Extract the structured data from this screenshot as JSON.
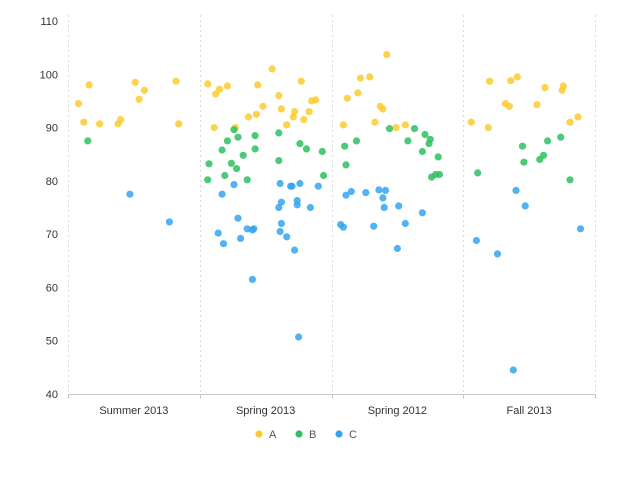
{
  "chart_data": {
    "type": "scatter",
    "title": "",
    "xlabel": "",
    "ylabel": "",
    "categories": [
      "Summer 2013",
      "Spring 2013",
      "Spring 2012",
      "Fall 2013"
    ],
    "ylim": [
      40,
      110
    ],
    "yticks": [
      40,
      50,
      60,
      70,
      80,
      90,
      100,
      110
    ],
    "grid": "vertical dashed separators between categories",
    "legend_position": "bottom-center",
    "series": [
      {
        "name": "A",
        "color": "#FACB2E",
        "points": [
          {
            "category": "Summer 2013",
            "pos": 0.08,
            "y": 94.5
          },
          {
            "category": "Summer 2013",
            "pos": 0.12,
            "y": 91.0
          },
          {
            "category": "Summer 2013",
            "pos": 0.16,
            "y": 98.0
          },
          {
            "category": "Summer 2013",
            "pos": 0.24,
            "y": 90.7
          },
          {
            "category": "Summer 2013",
            "pos": 0.38,
            "y": 90.7
          },
          {
            "category": "Summer 2013",
            "pos": 0.4,
            "y": 91.5
          },
          {
            "category": "Summer 2013",
            "pos": 0.51,
            "y": 98.5
          },
          {
            "category": "Summer 2013",
            "pos": 0.54,
            "y": 95.3
          },
          {
            "category": "Summer 2013",
            "pos": 0.58,
            "y": 97.0
          },
          {
            "category": "Summer 2013",
            "pos": 0.82,
            "y": 98.7
          },
          {
            "category": "Summer 2013",
            "pos": 0.84,
            "y": 90.7
          },
          {
            "category": "Spring 2013",
            "pos": 0.06,
            "y": 98.2
          },
          {
            "category": "Spring 2013",
            "pos": 0.11,
            "y": 90.0
          },
          {
            "category": "Spring 2013",
            "pos": 0.12,
            "y": 96.3
          },
          {
            "category": "Spring 2013",
            "pos": 0.15,
            "y": 97.2
          },
          {
            "category": "Spring 2013",
            "pos": 0.21,
            "y": 97.8
          },
          {
            "category": "Spring 2013",
            "pos": 0.27,
            "y": 90.0
          },
          {
            "category": "Spring 2013",
            "pos": 0.37,
            "y": 92.0
          },
          {
            "category": "Spring 2013",
            "pos": 0.43,
            "y": 92.5
          },
          {
            "category": "Spring 2013",
            "pos": 0.44,
            "y": 98.0
          },
          {
            "category": "Spring 2013",
            "pos": 0.48,
            "y": 94.0
          },
          {
            "category": "Spring 2013",
            "pos": 0.55,
            "y": 101.0
          },
          {
            "category": "Spring 2013",
            "pos": 0.6,
            "y": 96.0
          },
          {
            "category": "Spring 2013",
            "pos": 0.62,
            "y": 93.5
          },
          {
            "category": "Spring 2013",
            "pos": 0.66,
            "y": 90.5
          },
          {
            "category": "Spring 2013",
            "pos": 0.71,
            "y": 92.0
          },
          {
            "category": "Spring 2013",
            "pos": 0.72,
            "y": 93.0
          },
          {
            "category": "Spring 2013",
            "pos": 0.77,
            "y": 98.7
          },
          {
            "category": "Spring 2013",
            "pos": 0.79,
            "y": 91.5
          },
          {
            "category": "Spring 2013",
            "pos": 0.83,
            "y": 93.0
          },
          {
            "category": "Spring 2013",
            "pos": 0.85,
            "y": 95.0
          },
          {
            "category": "Spring 2013",
            "pos": 0.88,
            "y": 95.2
          },
          {
            "category": "Spring 2012",
            "pos": 0.09,
            "y": 90.5
          },
          {
            "category": "Spring 2012",
            "pos": 0.12,
            "y": 95.5
          },
          {
            "category": "Spring 2012",
            "pos": 0.2,
            "y": 96.5
          },
          {
            "category": "Spring 2012",
            "pos": 0.22,
            "y": 99.3
          },
          {
            "category": "Spring 2012",
            "pos": 0.29,
            "y": 99.5
          },
          {
            "category": "Spring 2012",
            "pos": 0.33,
            "y": 91.0
          },
          {
            "category": "Spring 2012",
            "pos": 0.37,
            "y": 94.0
          },
          {
            "category": "Spring 2012",
            "pos": 0.39,
            "y": 93.5
          },
          {
            "category": "Spring 2012",
            "pos": 0.42,
            "y": 103.7
          },
          {
            "category": "Spring 2012",
            "pos": 0.49,
            "y": 90.0
          },
          {
            "category": "Spring 2012",
            "pos": 0.56,
            "y": 90.5
          },
          {
            "category": "Fall 2013",
            "pos": 0.06,
            "y": 91.0
          },
          {
            "category": "Fall 2013",
            "pos": 0.19,
            "y": 90.0
          },
          {
            "category": "Fall 2013",
            "pos": 0.2,
            "y": 98.7
          },
          {
            "category": "Fall 2013",
            "pos": 0.32,
            "y": 94.5
          },
          {
            "category": "Fall 2013",
            "pos": 0.35,
            "y": 94.0
          },
          {
            "category": "Fall 2013",
            "pos": 0.36,
            "y": 98.8
          },
          {
            "category": "Fall 2013",
            "pos": 0.41,
            "y": 99.5
          },
          {
            "category": "Fall 2013",
            "pos": 0.56,
            "y": 94.3
          },
          {
            "category": "Fall 2013",
            "pos": 0.62,
            "y": 97.5
          },
          {
            "category": "Fall 2013",
            "pos": 0.75,
            "y": 97.0
          },
          {
            "category": "Fall 2013",
            "pos": 0.76,
            "y": 97.8
          },
          {
            "category": "Fall 2013",
            "pos": 0.81,
            "y": 91.0
          },
          {
            "category": "Fall 2013",
            "pos": 0.87,
            "y": 92.0
          }
        ]
      },
      {
        "name": "B",
        "color": "#2EC162",
        "points": [
          {
            "category": "Summer 2013",
            "pos": 0.15,
            "y": 87.5
          },
          {
            "category": "Spring 2013",
            "pos": 0.06,
            "y": 80.2
          },
          {
            "category": "Spring 2013",
            "pos": 0.07,
            "y": 83.2
          },
          {
            "category": "Spring 2013",
            "pos": 0.17,
            "y": 85.8
          },
          {
            "category": "Spring 2013",
            "pos": 0.19,
            "y": 81.0
          },
          {
            "category": "Spring 2013",
            "pos": 0.21,
            "y": 87.5
          },
          {
            "category": "Spring 2013",
            "pos": 0.24,
            "y": 83.3
          },
          {
            "category": "Spring 2013",
            "pos": 0.26,
            "y": 89.6
          },
          {
            "category": "Spring 2013",
            "pos": 0.28,
            "y": 82.3
          },
          {
            "category": "Spring 2013",
            "pos": 0.29,
            "y": 88.2
          },
          {
            "category": "Spring 2013",
            "pos": 0.33,
            "y": 84.8
          },
          {
            "category": "Spring 2013",
            "pos": 0.36,
            "y": 80.2
          },
          {
            "category": "Spring 2013",
            "pos": 0.42,
            "y": 86.0
          },
          {
            "category": "Spring 2013",
            "pos": 0.42,
            "y": 88.5
          },
          {
            "category": "Spring 2013",
            "pos": 0.6,
            "y": 89.0
          },
          {
            "category": "Spring 2013",
            "pos": 0.6,
            "y": 83.8
          },
          {
            "category": "Spring 2013",
            "pos": 0.76,
            "y": 87.0
          },
          {
            "category": "Spring 2013",
            "pos": 0.81,
            "y": 86.0
          },
          {
            "category": "Spring 2013",
            "pos": 0.93,
            "y": 85.5
          },
          {
            "category": "Spring 2013",
            "pos": 0.94,
            "y": 81.0
          },
          {
            "category": "Spring 2012",
            "pos": 0.1,
            "y": 86.5
          },
          {
            "category": "Spring 2012",
            "pos": 0.11,
            "y": 83.0
          },
          {
            "category": "Spring 2012",
            "pos": 0.19,
            "y": 87.5
          },
          {
            "category": "Spring 2012",
            "pos": 0.44,
            "y": 89.8
          },
          {
            "category": "Spring 2012",
            "pos": 0.58,
            "y": 87.5
          },
          {
            "category": "Spring 2012",
            "pos": 0.63,
            "y": 89.8
          },
          {
            "category": "Spring 2012",
            "pos": 0.69,
            "y": 85.5
          },
          {
            "category": "Spring 2012",
            "pos": 0.71,
            "y": 88.7
          },
          {
            "category": "Spring 2012",
            "pos": 0.74,
            "y": 87.0
          },
          {
            "category": "Spring 2012",
            "pos": 0.75,
            "y": 87.8
          },
          {
            "category": "Spring 2012",
            "pos": 0.76,
            "y": 80.7
          },
          {
            "category": "Spring 2012",
            "pos": 0.79,
            "y": 81.2
          },
          {
            "category": "Spring 2012",
            "pos": 0.81,
            "y": 84.5
          },
          {
            "category": "Spring 2012",
            "pos": 0.82,
            "y": 81.2
          },
          {
            "category": "Fall 2013",
            "pos": 0.11,
            "y": 81.5
          },
          {
            "category": "Fall 2013",
            "pos": 0.45,
            "y": 86.5
          },
          {
            "category": "Fall 2013",
            "pos": 0.46,
            "y": 83.5
          },
          {
            "category": "Fall 2013",
            "pos": 0.58,
            "y": 84.0
          },
          {
            "category": "Fall 2013",
            "pos": 0.61,
            "y": 84.8
          },
          {
            "category": "Fall 2013",
            "pos": 0.64,
            "y": 87.5
          },
          {
            "category": "Fall 2013",
            "pos": 0.74,
            "y": 88.2
          },
          {
            "category": "Fall 2013",
            "pos": 0.81,
            "y": 80.2
          }
        ]
      },
      {
        "name": "C",
        "color": "#35A4F0",
        "points": [
          {
            "category": "Summer 2013",
            "pos": 0.47,
            "y": 77.5
          },
          {
            "category": "Summer 2013",
            "pos": 0.77,
            "y": 72.3
          },
          {
            "category": "Spring 2013",
            "pos": 0.14,
            "y": 70.2
          },
          {
            "category": "Spring 2013",
            "pos": 0.17,
            "y": 77.5
          },
          {
            "category": "Spring 2013",
            "pos": 0.18,
            "y": 68.2
          },
          {
            "category": "Spring 2013",
            "pos": 0.26,
            "y": 79.3
          },
          {
            "category": "Spring 2013",
            "pos": 0.29,
            "y": 73.0
          },
          {
            "category": "Spring 2013",
            "pos": 0.31,
            "y": 69.2
          },
          {
            "category": "Spring 2013",
            "pos": 0.36,
            "y": 71.0
          },
          {
            "category": "Spring 2013",
            "pos": 0.4,
            "y": 70.8
          },
          {
            "category": "Spring 2013",
            "pos": 0.41,
            "y": 71.0
          },
          {
            "category": "Spring 2013",
            "pos": 0.4,
            "y": 61.5
          },
          {
            "category": "Spring 2013",
            "pos": 0.6,
            "y": 75.0
          },
          {
            "category": "Spring 2013",
            "pos": 0.61,
            "y": 70.5
          },
          {
            "category": "Spring 2013",
            "pos": 0.62,
            "y": 72.0
          },
          {
            "category": "Spring 2013",
            "pos": 0.61,
            "y": 79.5
          },
          {
            "category": "Spring 2013",
            "pos": 0.62,
            "y": 76.0
          },
          {
            "category": "Spring 2013",
            "pos": 0.66,
            "y": 69.5
          },
          {
            "category": "Spring 2013",
            "pos": 0.69,
            "y": 79.0
          },
          {
            "category": "Spring 2013",
            "pos": 0.7,
            "y": 79.0
          },
          {
            "category": "Spring 2013",
            "pos": 0.72,
            "y": 67.0
          },
          {
            "category": "Spring 2013",
            "pos": 0.74,
            "y": 75.5
          },
          {
            "category": "Spring 2013",
            "pos": 0.74,
            "y": 76.3
          },
          {
            "category": "Spring 2013",
            "pos": 0.75,
            "y": 50.7
          },
          {
            "category": "Spring 2013",
            "pos": 0.76,
            "y": 79.5
          },
          {
            "category": "Spring 2013",
            "pos": 0.84,
            "y": 75.0
          },
          {
            "category": "Spring 2013",
            "pos": 0.9,
            "y": 79.0
          },
          {
            "category": "Spring 2012",
            "pos": 0.07,
            "y": 71.8
          },
          {
            "category": "Spring 2012",
            "pos": 0.09,
            "y": 71.3
          },
          {
            "category": "Spring 2012",
            "pos": 0.11,
            "y": 77.3
          },
          {
            "category": "Spring 2012",
            "pos": 0.15,
            "y": 78.0
          },
          {
            "category": "Spring 2012",
            "pos": 0.26,
            "y": 77.8
          },
          {
            "category": "Spring 2012",
            "pos": 0.32,
            "y": 71.5
          },
          {
            "category": "Spring 2012",
            "pos": 0.36,
            "y": 78.3
          },
          {
            "category": "Spring 2012",
            "pos": 0.39,
            "y": 76.8
          },
          {
            "category": "Spring 2012",
            "pos": 0.4,
            "y": 75.0
          },
          {
            "category": "Spring 2012",
            "pos": 0.41,
            "y": 78.2
          },
          {
            "category": "Spring 2012",
            "pos": 0.5,
            "y": 67.3
          },
          {
            "category": "Spring 2012",
            "pos": 0.51,
            "y": 75.3
          },
          {
            "category": "Spring 2012",
            "pos": 0.56,
            "y": 72.0
          },
          {
            "category": "Spring 2012",
            "pos": 0.69,
            "y": 74.0
          },
          {
            "category": "Fall 2013",
            "pos": 0.1,
            "y": 68.8
          },
          {
            "category": "Fall 2013",
            "pos": 0.26,
            "y": 66.3
          },
          {
            "category": "Fall 2013",
            "pos": 0.38,
            "y": 44.5
          },
          {
            "category": "Fall 2013",
            "pos": 0.4,
            "y": 78.2
          },
          {
            "category": "Fall 2013",
            "pos": 0.47,
            "y": 75.3
          },
          {
            "category": "Fall 2013",
            "pos": 0.89,
            "y": 71.0
          }
        ]
      }
    ]
  }
}
